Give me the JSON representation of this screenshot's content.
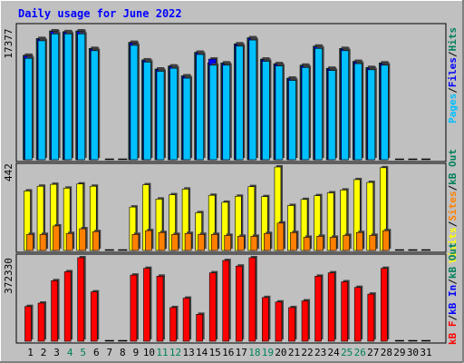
{
  "chart_data": [
    {
      "type": "bar",
      "title": "Daily usage for June 2022",
      "panel": "hits-files-pages",
      "ytick_label": "17377",
      "ylim": [
        0,
        17377
      ],
      "legend_placement": "right-vertical",
      "legend": [
        "Pages",
        "Files",
        "Hits"
      ],
      "colors": {
        "Hits": "#00805c",
        "Files": "#0000ff",
        "Pages": "#00c0ff"
      },
      "categories": [
        "1",
        "2",
        "3",
        "4",
        "5",
        "6",
        "7",
        "8",
        "9",
        "10",
        "11",
        "12",
        "13",
        "14",
        "15",
        "16",
        "17",
        "18",
        "19",
        "20",
        "21",
        "22",
        "23",
        "24",
        "25",
        "26",
        "27",
        "28",
        "29",
        "30",
        "31"
      ],
      "weekend_days": [
        "4",
        "5",
        "11",
        "12",
        "18",
        "19",
        "25",
        "26"
      ],
      "series": [
        {
          "name": "Hits",
          "values": [
            13700,
            15900,
            16900,
            16800,
            16900,
            14600,
            0,
            0,
            15400,
            13100,
            11900,
            12300,
            11000,
            14100,
            12700,
            12700,
            15200,
            16000,
            13200,
            12600,
            10700,
            12400,
            14900,
            12000,
            14600,
            12900,
            12100,
            12700,
            0,
            0,
            0
          ]
        },
        {
          "name": "Files",
          "values": [
            13600,
            15800,
            16800,
            16700,
            16800,
            14500,
            0,
            0,
            15300,
            13000,
            11800,
            12200,
            10900,
            14000,
            13200,
            12600,
            15100,
            15900,
            13100,
            12500,
            10600,
            12300,
            14800,
            11900,
            14500,
            12800,
            12000,
            12600,
            0,
            0,
            0
          ]
        },
        {
          "name": "Pages",
          "values": [
            13300,
            15600,
            16500,
            16500,
            16500,
            14300,
            0,
            0,
            15000,
            12800,
            11600,
            12000,
            10700,
            13800,
            12400,
            12400,
            14900,
            15700,
            12900,
            12300,
            10400,
            12100,
            14600,
            11700,
            14300,
            12600,
            11800,
            12400,
            0,
            0,
            0
          ]
        }
      ]
    },
    {
      "type": "bar",
      "panel": "visits-sites",
      "ytick_label": "442",
      "ylim": [
        0,
        442
      ],
      "legend": [
        "Sites",
        "Visits"
      ],
      "colors": {
        "Visits": "#ffff00",
        "Sites": "#ff8000"
      },
      "categories": [
        "1",
        "2",
        "3",
        "4",
        "5",
        "6",
        "7",
        "8",
        "9",
        "10",
        "11",
        "12",
        "13",
        "14",
        "15",
        "16",
        "17",
        "18",
        "19",
        "20",
        "21",
        "22",
        "23",
        "24",
        "25",
        "26",
        "27",
        "28",
        "29",
        "30",
        "31"
      ],
      "series": [
        {
          "name": "Visits",
          "values": [
            315,
            340,
            350,
            330,
            352,
            340,
            0,
            0,
            230,
            348,
            272,
            295,
            325,
            200,
            292,
            255,
            287,
            338,
            285,
            442,
            238,
            270,
            290,
            305,
            320,
            375,
            360,
            438,
            0,
            0,
            0
          ]
        },
        {
          "name": "Sites",
          "values": [
            85,
            85,
            130,
            90,
            115,
            100,
            0,
            0,
            85,
            105,
            95,
            85,
            90,
            85,
            85,
            80,
            75,
            75,
            90,
            145,
            95,
            70,
            75,
            70,
            80,
            95,
            80,
            105,
            0,
            0,
            0
          ]
        }
      ]
    },
    {
      "type": "bar",
      "panel": "kbytes",
      "ytick_label": "372330",
      "ylim": [
        0,
        372330
      ],
      "legend": [
        "kB F",
        "kB In",
        "kB Out"
      ],
      "colors": {
        "kB F": "#ff0000",
        "kB In": "#0000ff",
        "kB Out": "#00805c"
      },
      "categories": [
        "1",
        "2",
        "3",
        "4",
        "5",
        "6",
        "7",
        "8",
        "9",
        "10",
        "11",
        "12",
        "13",
        "14",
        "15",
        "16",
        "17",
        "18",
        "19",
        "20",
        "21",
        "22",
        "23",
        "24",
        "25",
        "26",
        "27",
        "28",
        "29",
        "30",
        "31"
      ],
      "series": [
        {
          "name": "kB F",
          "values": [
            155000,
            170000,
            270000,
            310000,
            375000,
            220000,
            0,
            0,
            295000,
            325000,
            290000,
            150000,
            192000,
            120000,
            305000,
            360000,
            335000,
            385000,
            195000,
            175000,
            150000,
            180000,
            290000,
            305000,
            265000,
            240000,
            210000,
            325000,
            0,
            0,
            0
          ]
        }
      ]
    }
  ],
  "legend_labels": {
    "top": [
      {
        "text": "Pages",
        "color": "#00c0ff"
      },
      {
        "text": "/",
        "color": "#000000"
      },
      {
        "text": "Files",
        "color": "#0000ff"
      },
      {
        "text": "/",
        "color": "#000000"
      },
      {
        "text": "Hits",
        "color": "#00805c"
      }
    ],
    "middle": [
      {
        "text": "Visits",
        "color": "#ffff00"
      },
      {
        "text": "/",
        "color": "#000000"
      },
      {
        "text": "Sites",
        "color": "#ff8000"
      },
      {
        "text": "/",
        "color": "#000000"
      },
      {
        "text": "kB Out",
        "color": "#00805c"
      }
    ],
    "bottom": [
      {
        "text": "kB F",
        "color": "#ff0000"
      },
      {
        "text": "/",
        "color": "#000000"
      },
      {
        "text": "kB In",
        "color": "#0000ff"
      },
      {
        "text": "/",
        "color": "#000000"
      },
      {
        "text": "kB Out",
        "color": "#00805c"
      }
    ]
  },
  "colors": {
    "background": "#c0c0c0",
    "title": "#0000ff",
    "weekend_label": "#00805c",
    "weekday_label": "#000000"
  }
}
